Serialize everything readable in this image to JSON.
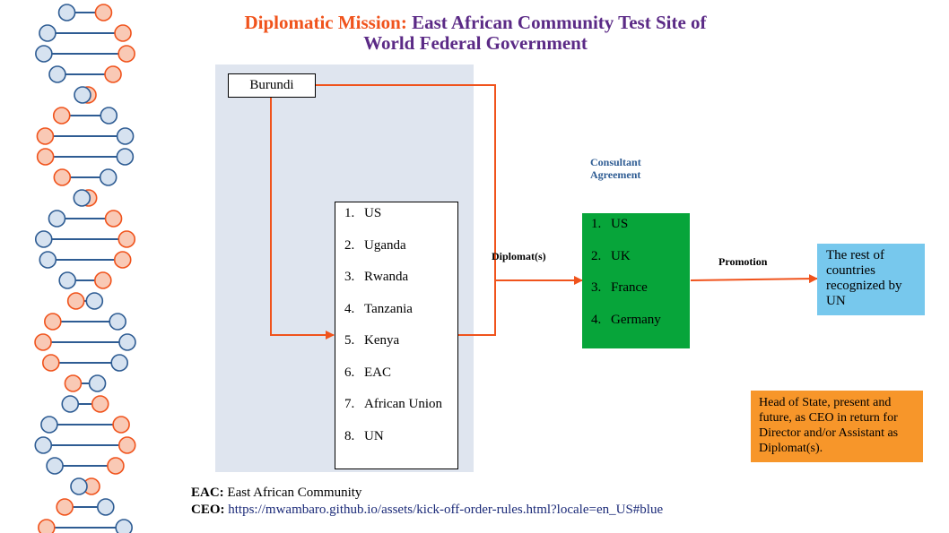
{
  "colors": {
    "title_accent": "#f0531c",
    "title_main": "#5b2a86",
    "arrow": "#f0531c",
    "panel_bg": "#dfe5ef",
    "consultant_box": "#07a53a",
    "rest_box": "#77c8ed",
    "note_box": "#f7962a",
    "dna_blue": "#2e5c93",
    "dna_orange": "#f0531c"
  },
  "title": {
    "accent": "Diplomatic Mission:",
    "rest_line1": "East African Community Test Site of",
    "line2": "World Federal Government"
  },
  "burundi_label": "Burundi",
  "member_list": [
    {
      "num": "1.",
      "label": "US"
    },
    {
      "num": "2.",
      "label": "Uganda"
    },
    {
      "num": "3.",
      "label": "Rwanda"
    },
    {
      "num": "4.",
      "label": "Tanzania"
    },
    {
      "num": "5.",
      "label": "Kenya"
    },
    {
      "num": "6.",
      "label": "EAC"
    },
    {
      "num": "7.",
      "label": "African Union"
    },
    {
      "num": "8.",
      "label": "UN"
    }
  ],
  "diplomats_label": "Diplomat(s)",
  "consultant": {
    "line1": "Consultant",
    "line2": "Agreement",
    "countries": [
      {
        "num": "1.",
        "label": "US"
      },
      {
        "num": "2.",
        "label": "UK"
      },
      {
        "num": "3.",
        "label": "France"
      },
      {
        "num": "4.",
        "label": "Germany"
      }
    ]
  },
  "promotion_label": "Promotion",
  "rest_countries": "The rest of countries recognized by UN",
  "note": "Head of State, present and future, as CEO in return for Director and/or Assistant as Diplomat(s).",
  "footer": {
    "eac_key": "EAC:",
    "eac_value": "East African Community",
    "ceo_key": "CEO:",
    "ceo_value": "https://mwambaro.github.io/assets/kick-off-order-rules.html?locale=en_US#blue"
  }
}
